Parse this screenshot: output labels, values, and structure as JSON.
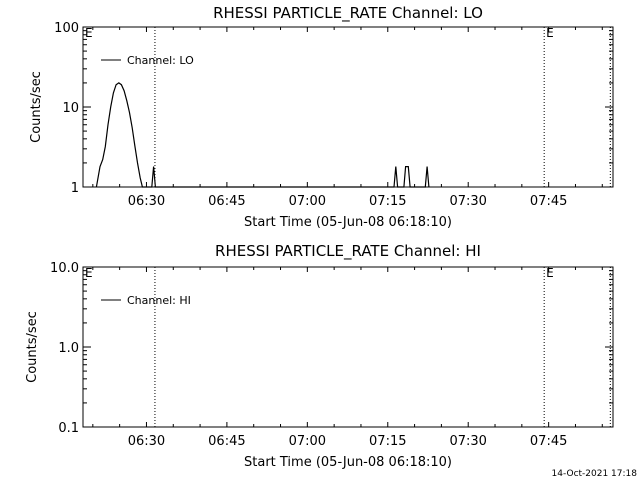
{
  "chart_data": [
    {
      "type": "line",
      "title": "RHESSI PARTICLE_RATE Channel: LO",
      "xlabel": "Start Time (05-Jun-08 06:18:10)",
      "ylabel": "Counts/sec",
      "yscale": "log",
      "ylim": [
        1,
        100
      ],
      "xlim": [
        "06:18:10",
        "07:57:00"
      ],
      "ytick_labels": [
        "1",
        "10",
        "100"
      ],
      "xtick_labels": [
        "06:30",
        "06:45",
        "07:00",
        "07:15",
        "07:30",
        "07:45"
      ],
      "legend": {
        "entries": [
          "Channel: LO"
        ],
        "position": "top-left"
      },
      "grid": false,
      "markers": [
        {
          "time": "06:31:35",
          "label": ""
        },
        {
          "time": "07:44:10",
          "label": "E"
        },
        {
          "time": "07:56:30",
          "label": ""
        }
      ],
      "edge_label": "E",
      "series": [
        {
          "name": "Channel: LO",
          "points": [
            [
              "06:20:40",
              1.0
            ],
            [
              "06:21:20",
              1.8
            ],
            [
              "06:21:50",
              2.2
            ],
            [
              "06:22:20",
              3.2
            ],
            [
              "06:22:50",
              6.0
            ],
            [
              "06:23:20",
              10.0
            ],
            [
              "06:23:50",
              15.0
            ],
            [
              "06:24:20",
              19.0
            ],
            [
              "06:24:50",
              20.0
            ],
            [
              "06:25:20",
              19.0
            ],
            [
              "06:25:50",
              16.0
            ],
            [
              "06:26:20",
              12.0
            ],
            [
              "06:26:50",
              8.5
            ],
            [
              "06:27:20",
              5.5
            ],
            [
              "06:27:50",
              3.3
            ],
            [
              "06:28:20",
              2.0
            ],
            [
              "06:28:50",
              1.3
            ],
            [
              "06:29:15",
              1.0
            ],
            [
              "06:31:00",
              1.0
            ],
            [
              "06:31:20",
              1.8
            ],
            [
              "06:31:40",
              1.0
            ],
            [
              "07:16:10",
              1.0
            ],
            [
              "07:16:30",
              1.8
            ],
            [
              "07:16:50",
              1.0
            ],
            [
              "07:18:00",
              1.0
            ],
            [
              "07:18:20",
              1.8
            ],
            [
              "07:18:50",
              1.8
            ],
            [
              "07:19:10",
              1.0
            ],
            [
              "07:22:00",
              1.0
            ],
            [
              "07:22:20",
              1.8
            ],
            [
              "07:22:40",
              1.0
            ]
          ]
        }
      ]
    },
    {
      "type": "line",
      "title": "RHESSI PARTICLE_RATE Channel: HI",
      "xlabel": "Start Time (05-Jun-08 06:18:10)",
      "ylabel": "Counts/sec",
      "yscale": "log",
      "ylim": [
        0.1,
        10
      ],
      "xlim": [
        "06:18:10",
        "07:57:00"
      ],
      "ytick_labels": [
        "0.1",
        "1.0",
        "10.0"
      ],
      "xtick_labels": [
        "06:30",
        "06:45",
        "07:00",
        "07:15",
        "07:30",
        "07:45"
      ],
      "legend": {
        "entries": [
          "Channel: HI"
        ],
        "position": "top-left"
      },
      "grid": false,
      "markers": [
        {
          "time": "06:31:35",
          "label": ""
        },
        {
          "time": "07:44:10",
          "label": "E"
        },
        {
          "time": "07:56:30",
          "label": ""
        }
      ],
      "edge_label": "E",
      "series": [
        {
          "name": "Channel: HI",
          "points": []
        }
      ]
    }
  ],
  "footer": {
    "timestamp": "14-Oct-2021 17:18"
  }
}
